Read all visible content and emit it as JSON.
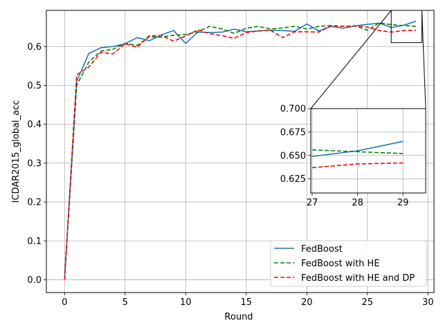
{
  "chart_data": [
    {
      "type": "line",
      "title": "",
      "xlabel": "Round",
      "ylabel": "ICDAR2015_global_acc",
      "xlim": [
        -1.5,
        30.5
      ],
      "ylim": [
        -0.033,
        0.693
      ],
      "x_ticks": [
        0,
        5,
        10,
        15,
        20,
        25,
        30
      ],
      "y_ticks": [
        0.0,
        0.1,
        0.2,
        0.3,
        0.4,
        0.5,
        0.6
      ],
      "x_tick_labels": [
        "0",
        "5",
        "10",
        "15",
        "20",
        "25",
        "30"
      ],
      "y_tick_labels": [
        "0.0",
        "0.1",
        "0.2",
        "0.3",
        "0.4",
        "0.5",
        "0.6"
      ],
      "grid": true,
      "legend_position": "lower-right",
      "x": [
        0,
        1,
        2,
        3,
        4,
        5,
        6,
        7,
        8,
        9,
        10,
        11,
        12,
        13,
        14,
        15,
        16,
        17,
        18,
        19,
        20,
        21,
        22,
        23,
        24,
        25,
        26,
        27,
        28,
        29
      ],
      "series": [
        {
          "name": "FedBoost",
          "color": "#1f77b4",
          "dash": "solid",
          "values": [
            0.0,
            0.51,
            0.582,
            0.597,
            0.6,
            0.607,
            0.623,
            0.615,
            0.63,
            0.641,
            0.608,
            0.637,
            0.636,
            0.637,
            0.645,
            0.638,
            0.64,
            0.642,
            0.641,
            0.639,
            0.658,
            0.64,
            0.652,
            0.647,
            0.653,
            0.657,
            0.66,
            0.649,
            0.655,
            0.665
          ]
        },
        {
          "name": "FedBoost with HE",
          "color": "#008000",
          "dash": "dashed",
          "values": [
            0.0,
            0.5,
            0.56,
            0.588,
            0.593,
            0.608,
            0.603,
            0.625,
            0.624,
            0.629,
            0.631,
            0.638,
            0.652,
            0.645,
            0.634,
            0.647,
            0.652,
            0.645,
            0.648,
            0.652,
            0.645,
            0.652,
            0.654,
            0.652,
            0.653,
            0.642,
            0.661,
            0.656,
            0.654,
            0.652
          ]
        },
        {
          "name": "FedBoost with HE and DP",
          "color": "#ff0000",
          "dash": "dashed",
          "values": [
            0.0,
            0.527,
            0.547,
            0.585,
            0.581,
            0.607,
            0.598,
            0.628,
            0.628,
            0.614,
            0.627,
            0.643,
            0.633,
            0.628,
            0.621,
            0.636,
            0.64,
            0.642,
            0.623,
            0.638,
            0.638,
            0.637,
            0.653,
            0.652,
            0.653,
            0.65,
            0.641,
            0.637,
            0.641,
            0.642
          ]
        }
      ]
    },
    {
      "type": "line",
      "title": "",
      "xlabel": "",
      "ylabel": "",
      "xlim": [
        26.97,
        29.5
      ],
      "ylim": [
        0.61,
        0.7
      ],
      "x_ticks": [
        27,
        28,
        29
      ],
      "y_ticks": [
        0.625,
        0.65,
        0.675,
        0.7
      ],
      "x_tick_labels": [
        "27",
        "28",
        "29"
      ],
      "y_tick_labels": [
        "0.625",
        "0.650",
        "0.675",
        "0.700"
      ],
      "grid": true,
      "x": [
        27,
        28,
        29
      ],
      "series": [
        {
          "name": "FedBoost",
          "color": "#1f77b4",
          "dash": "solid",
          "values": [
            0.649,
            0.655,
            0.665
          ]
        },
        {
          "name": "FedBoost with HE",
          "color": "#008000",
          "dash": "dashed",
          "values": [
            0.656,
            0.654,
            0.652
          ]
        },
        {
          "name": "FedBoost with HE and DP",
          "color": "#ff0000",
          "dash": "dashed",
          "values": [
            0.637,
            0.641,
            0.642
          ]
        }
      ]
    }
  ]
}
